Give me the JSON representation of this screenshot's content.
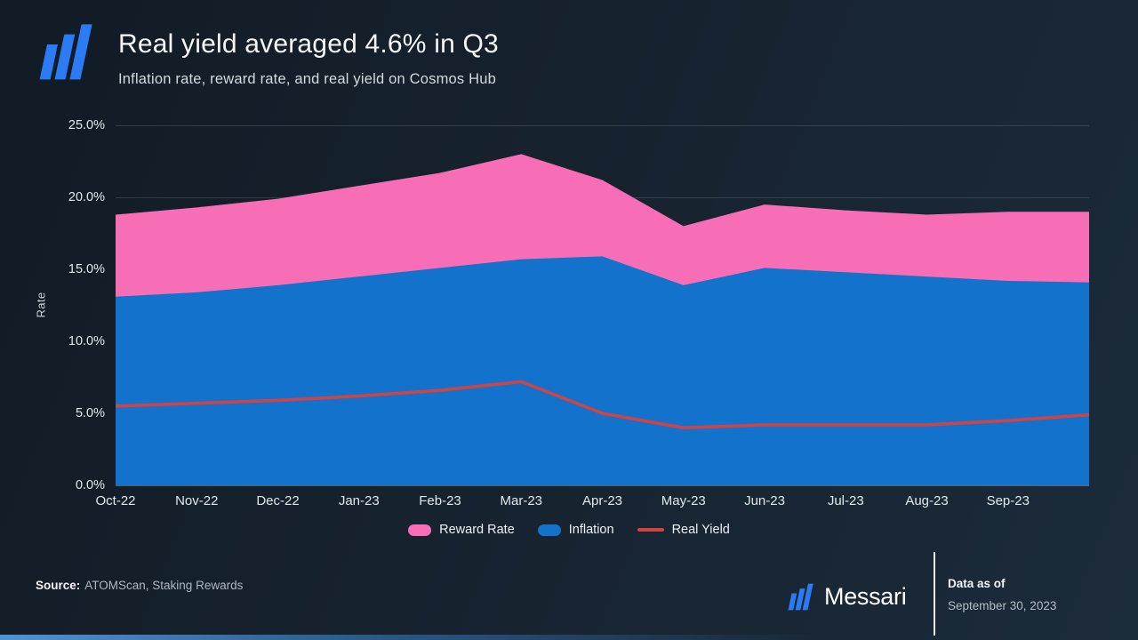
{
  "header": {
    "title": "Real yield averaged 4.6% in Q3",
    "subtitle": "Inflation rate, reward rate, and real yield on Cosmos Hub"
  },
  "chart_data": {
    "type": "area",
    "title": "Real yield averaged 4.6% in Q3",
    "categories": [
      "Oct-22",
      "Nov-22",
      "Dec-22",
      "Jan-23",
      "Feb-23",
      "Mar-23",
      "Apr-23",
      "May-23",
      "Jun-23",
      "Jul-23",
      "Aug-23",
      "Sep-23"
    ],
    "series": [
      {
        "name": "Reward Rate",
        "type": "area",
        "color": "#f86eb6",
        "values": [
          18.8,
          19.3,
          19.9,
          20.8,
          21.7,
          23.0,
          21.2,
          18.0,
          19.5,
          19.1,
          18.8,
          19.0,
          19.0
        ]
      },
      {
        "name": "Inflation",
        "type": "area",
        "color": "#1373cc",
        "values": [
          13.1,
          13.4,
          13.9,
          14.5,
          15.1,
          15.7,
          15.9,
          13.9,
          15.1,
          14.8,
          14.5,
          14.2,
          14.1
        ]
      },
      {
        "name": "Real Yield",
        "type": "line",
        "color": "#d24444",
        "values": [
          5.5,
          5.7,
          5.9,
          6.2,
          6.6,
          7.2,
          5.0,
          4.0,
          4.2,
          4.2,
          4.2,
          4.5,
          4.9
        ]
      }
    ],
    "xlabel": "",
    "ylabel": "Rate",
    "ylim": [
      0,
      25
    ],
    "yticks": [
      "0.0%",
      "5.0%",
      "10.0%",
      "15.0%",
      "20.0%",
      "25.0%"
    ],
    "grid": true,
    "legend_position": "bottom",
    "note": "Each series has 13 points: 12 monthly ticks plus one unlabeled point extending to the right edge of the plot."
  },
  "footer": {
    "source_label": "Source:",
    "source_value": "ATOMScan, Staking Rewards",
    "brand_wordmark": "Messari",
    "data_as_of_label": "Data as of",
    "data_as_of_value": "September 30, 2023"
  },
  "colors": {
    "background_start": "#111b25",
    "background_end": "#1c2b3a",
    "logo_blue": "#2b7bf5",
    "reward_rate_pink": "#f86eb6",
    "inflation_blue": "#1373cc",
    "real_yield_red": "#d24444"
  }
}
